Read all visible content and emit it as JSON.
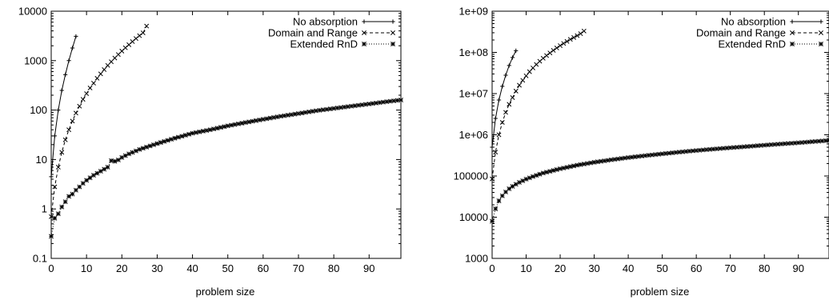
{
  "chart_data": [
    {
      "type": "line",
      "xlabel": "problem size",
      "ylabel": "",
      "xscale": "linear",
      "yscale": "log",
      "xlim": [
        0,
        99
      ],
      "ylim": [
        0.1,
        10000
      ],
      "x_ticks": [
        0,
        10,
        20,
        30,
        40,
        50,
        60,
        70,
        80,
        90
      ],
      "x_tick_labels": [
        "0",
        "10",
        "20",
        "30",
        "40",
        "50",
        "60",
        "70",
        "80",
        "90"
      ],
      "y_ticks": [
        0.1,
        1,
        10,
        100,
        1000,
        10000
      ],
      "y_tick_labels": [
        "0.1",
        "1",
        "10",
        "100",
        "1000",
        "10000"
      ],
      "grid": false,
      "legend_position": "top-right",
      "series": [
        {
          "name": "No absorption",
          "marker": "plus",
          "dash": "solid",
          "x": [
            0,
            1,
            2,
            3,
            4,
            5,
            6,
            7
          ],
          "y": [
            4.5,
            30,
            100,
            250,
            520,
            1000,
            1800,
            3100
          ]
        },
        {
          "name": "Domain and Range",
          "marker": "cross",
          "dash": "dashed",
          "x": [
            0,
            1,
            2,
            3,
            4,
            5,
            6,
            7,
            8,
            9,
            10,
            11,
            12,
            13,
            14,
            15,
            16,
            17,
            18,
            19,
            20,
            21,
            22,
            23,
            24,
            25,
            26,
            27
          ],
          "y": [
            0.7,
            2.8,
            7,
            14,
            25,
            40,
            60,
            87,
            120,
            165,
            215,
            280,
            350,
            440,
            540,
            660,
            800,
            950,
            1130,
            1330,
            1560,
            1820,
            2100,
            2430,
            2800,
            3200,
            3650,
            5000
          ]
        },
        {
          "name": "Extended RnD",
          "marker": "star",
          "dash": "dotted",
          "x": [
            0,
            1,
            2,
            3,
            4,
            5,
            6,
            7,
            8,
            9,
            10,
            12,
            14,
            16,
            17,
            18,
            19,
            20,
            22,
            25,
            30,
            35,
            40,
            45,
            50,
            55,
            60,
            65,
            70,
            75,
            80,
            85,
            90,
            95,
            99
          ],
          "y": [
            0.28,
            0.65,
            0.8,
            1.1,
            1.4,
            1.8,
            2.0,
            2.4,
            2.8,
            3.3,
            3.8,
            4.8,
            5.8,
            7.0,
            9.5,
            9.2,
            9.8,
            11,
            13,
            16,
            21,
            27,
            34,
            40,
            48,
            56,
            65,
            75,
            85,
            97,
            108,
            120,
            133,
            148,
            160
          ]
        }
      ]
    },
    {
      "type": "line",
      "xlabel": "problem size",
      "ylabel": "",
      "xscale": "linear",
      "yscale": "log",
      "xlim": [
        0,
        99
      ],
      "ylim": [
        1000,
        1000000000
      ],
      "x_ticks": [
        0,
        10,
        20,
        30,
        40,
        50,
        60,
        70,
        80,
        90
      ],
      "x_tick_labels": [
        "0",
        "10",
        "20",
        "30",
        "40",
        "50",
        "60",
        "70",
        "80",
        "90"
      ],
      "y_ticks": [
        1000,
        10000,
        100000,
        1000000,
        10000000,
        100000000,
        1000000000
      ],
      "y_tick_labels": [
        "1000",
        "10000",
        "100000",
        "1e+06",
        "1e+07",
        "1e+08",
        "1e+09"
      ],
      "grid": false,
      "legend_position": "top-right",
      "series": [
        {
          "name": "No absorption",
          "marker": "plus",
          "dash": "solid",
          "x": [
            0,
            1,
            2,
            3,
            4,
            5,
            6,
            7
          ],
          "y": [
            500000,
            2500000,
            7000000,
            15000000,
            28000000,
            48000000,
            75000000,
            110000000
          ]
        },
        {
          "name": "Domain and Range",
          "marker": "cross",
          "dash": "dashed",
          "x": [
            0,
            1,
            2,
            3,
            4,
            5,
            6,
            7,
            8,
            9,
            10,
            11,
            12,
            13,
            14,
            15,
            16,
            17,
            18,
            19,
            20,
            21,
            22,
            23,
            24,
            25,
            26,
            27
          ],
          "y": [
            85000,
            380000,
            1000000,
            2000000,
            3500000,
            5500000,
            8000000,
            11500000,
            16000000,
            21000000,
            27000000,
            34000000,
            42000000,
            51000000,
            61000000,
            72000000,
            84000000,
            97000000,
            112000000,
            128000000,
            146000000,
            165000000,
            185000000,
            207000000,
            230000000,
            255000000,
            285000000,
            330000000
          ]
        },
        {
          "name": "Extended RnD",
          "marker": "star",
          "dash": "dotted",
          "x": [
            0,
            1,
            2,
            3,
            4,
            5,
            6,
            7,
            8,
            10,
            12,
            15,
            20,
            25,
            30,
            35,
            40,
            45,
            50,
            55,
            60,
            65,
            70,
            75,
            80,
            85,
            90,
            95,
            99
          ],
          "y": [
            8000,
            16000,
            25000,
            33000,
            41000,
            49000,
            56000,
            63000,
            70000,
            84000,
            97000,
            118000,
            150000,
            183000,
            215000,
            247000,
            280000,
            312000,
            345000,
            380000,
            415000,
            450000,
            485000,
            520000,
            560000,
            600000,
            640000,
            690000,
            730000
          ]
        }
      ]
    }
  ]
}
